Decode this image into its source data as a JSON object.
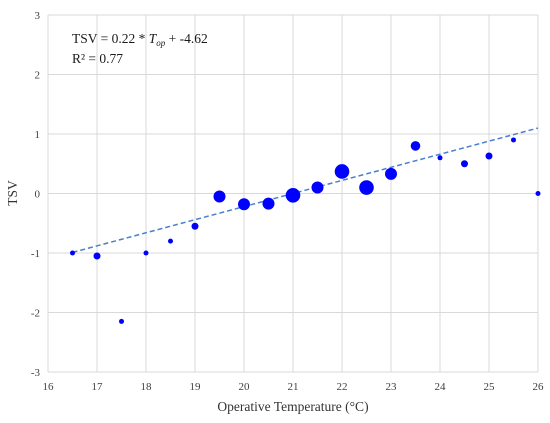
{
  "chart_data": {
    "type": "scatter",
    "xlabel": "Operative Temperature (°C)",
    "ylabel": "TSV",
    "xlim": [
      16,
      26
    ],
    "ylim": [
      -3,
      3
    ],
    "x_ticks": [
      "16",
      "17",
      "18",
      "19",
      "20",
      "21",
      "22",
      "23",
      "24",
      "25",
      "26"
    ],
    "y_ticks": [
      "-3",
      "-2",
      "-1",
      "0",
      "1",
      "2",
      "3"
    ],
    "grid": true,
    "marker_color": "#0000ff",
    "trendline_color": "#4a7fcc",
    "annotation": {
      "eq_prefix": "TSV = 0.22 * ",
      "eq_var": "T",
      "eq_sub": "op",
      "eq_suffix": " + -4.62",
      "r2": "R² = 0.77"
    },
    "trendline": {
      "slope": 0.22,
      "intercept": -4.62,
      "x_range": [
        16.5,
        26
      ]
    },
    "points": [
      {
        "x": 16.5,
        "y": -1.0,
        "size": 1
      },
      {
        "x": 17.0,
        "y": -1.05,
        "size": 2
      },
      {
        "x": 17.5,
        "y": -2.15,
        "size": 1
      },
      {
        "x": 18.0,
        "y": -1.0,
        "size": 1
      },
      {
        "x": 18.5,
        "y": -0.8,
        "size": 1
      },
      {
        "x": 19.0,
        "y": -0.55,
        "size": 2
      },
      {
        "x": 19.5,
        "y": -0.05,
        "size": 4
      },
      {
        "x": 20.0,
        "y": -0.18,
        "size": 4
      },
      {
        "x": 20.5,
        "y": -0.17,
        "size": 4
      },
      {
        "x": 21.0,
        "y": -0.03,
        "size": 5
      },
      {
        "x": 21.5,
        "y": 0.1,
        "size": 4
      },
      {
        "x": 22.0,
        "y": 0.37,
        "size": 5
      },
      {
        "x": 22.5,
        "y": 0.1,
        "size": 5
      },
      {
        "x": 23.0,
        "y": 0.33,
        "size": 4
      },
      {
        "x": 23.5,
        "y": 0.8,
        "size": 3
      },
      {
        "x": 24.0,
        "y": 0.6,
        "size": 1
      },
      {
        "x": 24.5,
        "y": 0.5,
        "size": 2
      },
      {
        "x": 25.0,
        "y": 0.63,
        "size": 2
      },
      {
        "x": 25.5,
        "y": 0.9,
        "size": 1
      },
      {
        "x": 26.0,
        "y": 0.0,
        "size": 1
      }
    ]
  }
}
